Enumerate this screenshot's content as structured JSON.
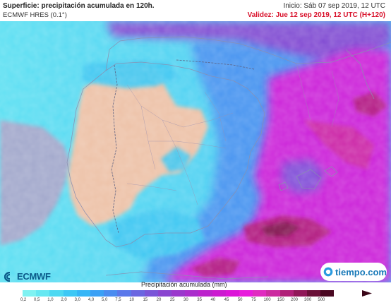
{
  "header": {
    "title": "Superficie: precipitación acumulada en 120h.",
    "model": "ECMWF HRES (0.1°)",
    "init": "Inicio: Sáb 07 sep 2019, 12 UTC",
    "valid": "Validez: Jue 12 sep 2019, 12 UTC (H+120)"
  },
  "legend": {
    "title": "Precipitación acumulada (mm)",
    "ticks": [
      "0,2",
      "0,5",
      "1,0",
      "2,0",
      "3,0",
      "4,0",
      "5,0",
      "7,5",
      "10",
      "15",
      "20",
      "25",
      "30",
      "35",
      "40",
      "45",
      "50",
      "75",
      "100",
      "150",
      "200",
      "300",
      "500"
    ],
    "colors": [
      "#7ff2f2",
      "#66e8f2",
      "#4dd9f2",
      "#3dc8f5",
      "#35b6f7",
      "#3aa0f5",
      "#4a8cf0",
      "#5a78ea",
      "#6a66e0",
      "#7a55d8",
      "#8a45d0",
      "#9a38cc",
      "#aa2dcc",
      "#bc22cc",
      "#cc1ad0",
      "#dc14d8",
      "#e81adc",
      "#e02ac0",
      "#cc2aa0",
      "#b02078",
      "#901858",
      "#6a1038",
      "#4a0822"
    ]
  },
  "logos": {
    "ecmwf": "ECMWF",
    "tiempo": "tiempo.com"
  },
  "map_colors": {
    "sea_west": "#a0a8cc",
    "land_dry": "#edc2a8",
    "rain_light": "#3fd6f2",
    "rain_moderate": "#4a8cf0",
    "rain_heavy": "#d81ad8",
    "rain_extreme": "#8a1450"
  }
}
